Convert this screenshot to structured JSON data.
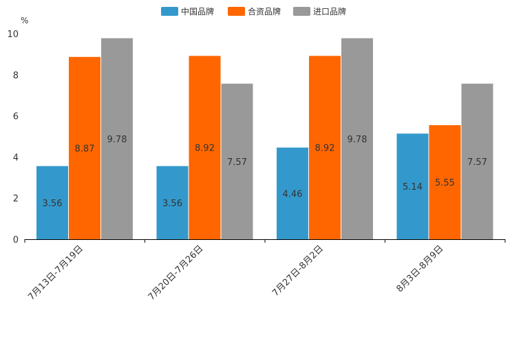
{
  "chart_data": {
    "type": "bar",
    "title": "",
    "xlabel": "",
    "ylabel": "%",
    "ylim": [
      0,
      10
    ],
    "yticks": [
      0,
      2,
      4,
      6,
      8,
      10
    ],
    "grid": false,
    "legend_position": "top-center",
    "categories": [
      "7月13日-7月19日",
      "7月20日-7月26日",
      "7月27日-8月2日",
      "8月3日-8月9日"
    ],
    "series": [
      {
        "name": "中国品牌",
        "color": "#3399cc",
        "values": [
          3.56,
          3.56,
          4.46,
          5.14
        ]
      },
      {
        "name": "合资品牌",
        "color": "#ff6600",
        "values": [
          8.87,
          8.92,
          8.92,
          5.55
        ]
      },
      {
        "name": "进口品牌",
        "color": "#999999",
        "values": [
          9.78,
          7.57,
          9.78,
          7.57
        ]
      }
    ],
    "data_labels": [
      [
        "3.56",
        "3.56",
        "4.46",
        "5.14"
      ],
      [
        "8.87",
        "8.92",
        "8.92",
        "5.55"
      ],
      [
        "9.78",
        "7.57",
        "9.78",
        "7.57"
      ]
    ]
  }
}
